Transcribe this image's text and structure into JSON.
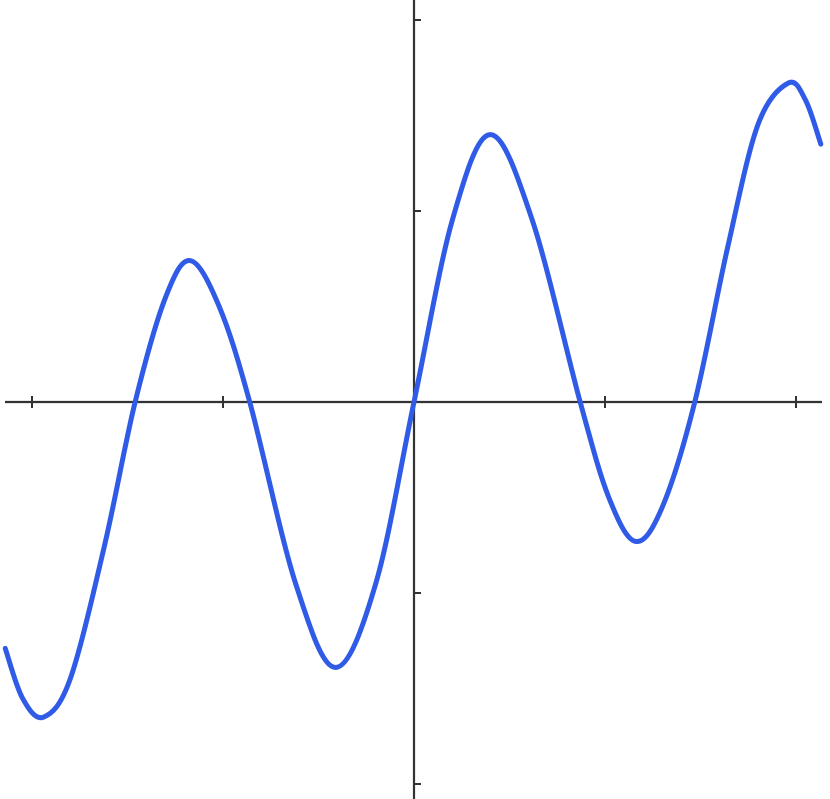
{
  "chart_data": {
    "type": "line",
    "title": "",
    "xlabel": "",
    "ylabel": "",
    "xlim": [
      -2.17,
      2.17
    ],
    "ylim": [
      -2.1,
      2.1
    ],
    "x_ticks": [
      -2,
      -1,
      1,
      2
    ],
    "y_ticks": [
      -2,
      -1,
      1,
      2
    ],
    "tick_labels_shown": false,
    "grid": false,
    "legend": "none",
    "colors": {
      "line": "#2f5be6",
      "axis": "#333333"
    },
    "series": [
      {
        "points": [
          [
            -2.14,
            -1.29
          ],
          [
            -2.05,
            -1.55
          ],
          [
            -1.94,
            -1.65
          ],
          [
            -1.8,
            -1.45
          ],
          [
            -1.62,
            -0.75
          ],
          [
            -1.46,
            0
          ],
          [
            -1.3,
            0.55
          ],
          [
            -1.17,
            0.74
          ],
          [
            -1.02,
            0.5
          ],
          [
            -0.86,
            0
          ],
          [
            -0.62,
            -0.95
          ],
          [
            -0.41,
            -1.39
          ],
          [
            -0.2,
            -0.95
          ],
          [
            0,
            0
          ],
          [
            0.2,
            0.95
          ],
          [
            0.4,
            1.4
          ],
          [
            0.62,
            0.95
          ],
          [
            0.87,
            0
          ],
          [
            1.02,
            -0.5
          ],
          [
            1.16,
            -0.73
          ],
          [
            1.3,
            -0.55
          ],
          [
            1.47,
            0
          ],
          [
            1.64,
            0.8
          ],
          [
            1.8,
            1.45
          ],
          [
            1.96,
            1.67
          ],
          [
            2.05,
            1.58
          ],
          [
            2.13,
            1.35
          ]
        ]
      }
    ]
  }
}
